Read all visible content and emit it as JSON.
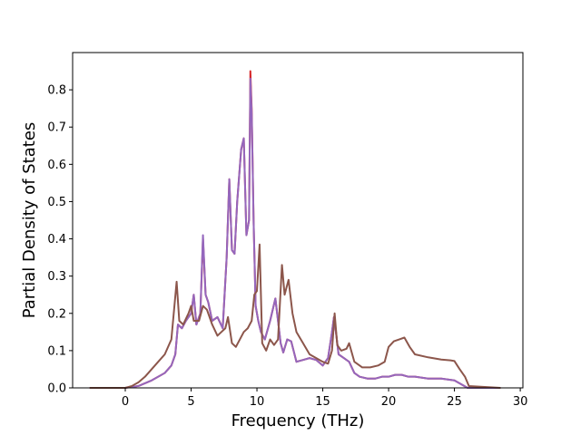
{
  "chart_data": {
    "type": "line",
    "title": "",
    "xlabel": "Frequency (THz)",
    "ylabel": "Partial Density of States",
    "xlim": [
      -4.0,
      30.2
    ],
    "ylim": [
      0.0,
      0.9
    ],
    "xticks": [
      0,
      5,
      10,
      15,
      20,
      25,
      30
    ],
    "xtick_labels": [
      "0",
      "5",
      "10",
      "15",
      "20",
      "25",
      "30"
    ],
    "yticks": [
      0.0,
      0.1,
      0.2,
      0.3,
      0.4,
      0.5,
      0.6,
      0.7,
      0.8
    ],
    "ytick_labels": [
      "0.0",
      "0.1",
      "0.2",
      "0.3",
      "0.4",
      "0.5",
      "0.6",
      "0.7",
      "0.8"
    ],
    "grid": false,
    "legend": "none",
    "series": [
      {
        "color": "#d62728",
        "x": [
          -2.7,
          0.0,
          1.0,
          2.0,
          3.0,
          3.5,
          3.8,
          4.0,
          4.3,
          4.6,
          5.0,
          5.2,
          5.4,
          5.7,
          5.9,
          6.1,
          6.3,
          6.6,
          7.0,
          7.4,
          7.7,
          7.9,
          8.1,
          8.3,
          8.5,
          8.8,
          9.0,
          9.2,
          9.4,
          9.5,
          9.6,
          9.75,
          9.9,
          10.1,
          10.3,
          10.6,
          11.0,
          11.4,
          11.8,
          12.0,
          12.3,
          12.6,
          13.0,
          13.5,
          14.0,
          14.5,
          15.0,
          15.4,
          15.7,
          15.85,
          16.0,
          16.2,
          16.6,
          17.0,
          17.4,
          17.8,
          18.4,
          19.0,
          19.5,
          20.0,
          20.5,
          21.0,
          21.5,
          22.0,
          23.0,
          24.0,
          25.0,
          25.5,
          26.0,
          28.5
        ],
        "values": [
          0.0,
          0.0,
          0.005,
          0.02,
          0.04,
          0.06,
          0.09,
          0.17,
          0.16,
          0.18,
          0.2,
          0.25,
          0.17,
          0.2,
          0.4,
          0.25,
          0.23,
          0.18,
          0.19,
          0.16,
          0.35,
          0.56,
          0.37,
          0.36,
          0.5,
          0.64,
          0.67,
          0.41,
          0.45,
          0.85,
          0.75,
          0.44,
          0.22,
          0.18,
          0.15,
          0.13,
          0.18,
          0.24,
          0.12,
          0.095,
          0.13,
          0.125,
          0.07,
          0.075,
          0.08,
          0.075,
          0.06,
          0.08,
          0.15,
          0.19,
          0.15,
          0.09,
          0.08,
          0.07,
          0.04,
          0.03,
          0.025,
          0.025,
          0.03,
          0.03,
          0.035,
          0.035,
          0.03,
          0.03,
          0.025,
          0.025,
          0.02,
          0.01,
          0.0,
          0.0
        ]
      },
      {
        "color": "#9467bd",
        "x": [
          -2.7,
          0.0,
          1.0,
          2.0,
          3.0,
          3.5,
          3.8,
          4.0,
          4.3,
          4.6,
          5.0,
          5.2,
          5.4,
          5.7,
          5.9,
          6.1,
          6.3,
          6.6,
          7.0,
          7.4,
          7.7,
          7.9,
          8.1,
          8.3,
          8.5,
          8.8,
          9.0,
          9.2,
          9.4,
          9.5,
          9.6,
          9.75,
          9.9,
          10.1,
          10.3,
          10.6,
          11.0,
          11.4,
          11.8,
          12.0,
          12.3,
          12.6,
          13.0,
          13.5,
          14.0,
          14.5,
          15.0,
          15.4,
          15.7,
          15.85,
          16.0,
          16.2,
          16.6,
          17.0,
          17.4,
          17.8,
          18.4,
          19.0,
          19.5,
          20.0,
          20.5,
          21.0,
          21.5,
          22.0,
          23.0,
          24.0,
          25.0,
          25.5,
          26.0,
          28.5
        ],
        "values": [
          0.0,
          0.0,
          0.005,
          0.02,
          0.04,
          0.06,
          0.09,
          0.17,
          0.16,
          0.18,
          0.2,
          0.25,
          0.17,
          0.2,
          0.41,
          0.25,
          0.23,
          0.18,
          0.19,
          0.16,
          0.35,
          0.56,
          0.37,
          0.36,
          0.5,
          0.64,
          0.67,
          0.41,
          0.45,
          0.83,
          0.74,
          0.44,
          0.22,
          0.18,
          0.15,
          0.13,
          0.18,
          0.24,
          0.12,
          0.095,
          0.13,
          0.125,
          0.07,
          0.075,
          0.08,
          0.075,
          0.06,
          0.08,
          0.15,
          0.19,
          0.15,
          0.09,
          0.08,
          0.07,
          0.04,
          0.03,
          0.025,
          0.025,
          0.03,
          0.03,
          0.035,
          0.035,
          0.03,
          0.03,
          0.025,
          0.025,
          0.02,
          0.01,
          0.0,
          0.0
        ]
      },
      {
        "color": "#8c564b",
        "x": [
          -2.7,
          0.0,
          0.5,
          1.0,
          1.5,
          2.0,
          2.5,
          3.0,
          3.5,
          3.9,
          4.1,
          4.4,
          4.8,
          5.0,
          5.2,
          5.3,
          5.6,
          5.9,
          6.2,
          6.6,
          7.0,
          7.3,
          7.6,
          7.8,
          8.1,
          8.4,
          8.7,
          9.0,
          9.3,
          9.6,
          9.8,
          10.0,
          10.2,
          10.4,
          10.7,
          11.0,
          11.3,
          11.6,
          11.9,
          12.1,
          12.4,
          12.7,
          13.0,
          13.5,
          14.0,
          14.5,
          15.0,
          15.4,
          15.7,
          15.9,
          16.1,
          16.4,
          16.8,
          17.0,
          17.4,
          18.0,
          18.6,
          19.2,
          19.7,
          20.0,
          20.4,
          20.8,
          21.2,
          21.6,
          22.0,
          23.0,
          24.0,
          24.7,
          25.0,
          25.4,
          25.8,
          26.1,
          28.5
        ],
        "values": [
          0.0,
          0.0,
          0.005,
          0.015,
          0.03,
          0.05,
          0.07,
          0.09,
          0.13,
          0.285,
          0.18,
          0.17,
          0.2,
          0.22,
          0.18,
          0.18,
          0.18,
          0.22,
          0.21,
          0.17,
          0.14,
          0.15,
          0.16,
          0.19,
          0.12,
          0.11,
          0.13,
          0.15,
          0.16,
          0.18,
          0.25,
          0.26,
          0.385,
          0.12,
          0.1,
          0.13,
          0.115,
          0.13,
          0.33,
          0.25,
          0.29,
          0.2,
          0.15,
          0.12,
          0.09,
          0.08,
          0.07,
          0.065,
          0.1,
          0.2,
          0.115,
          0.1,
          0.105,
          0.12,
          0.07,
          0.055,
          0.055,
          0.06,
          0.07,
          0.11,
          0.125,
          0.13,
          0.135,
          0.11,
          0.09,
          0.082,
          0.076,
          0.074,
          0.072,
          0.05,
          0.03,
          0.005,
          0.0
        ]
      }
    ]
  }
}
